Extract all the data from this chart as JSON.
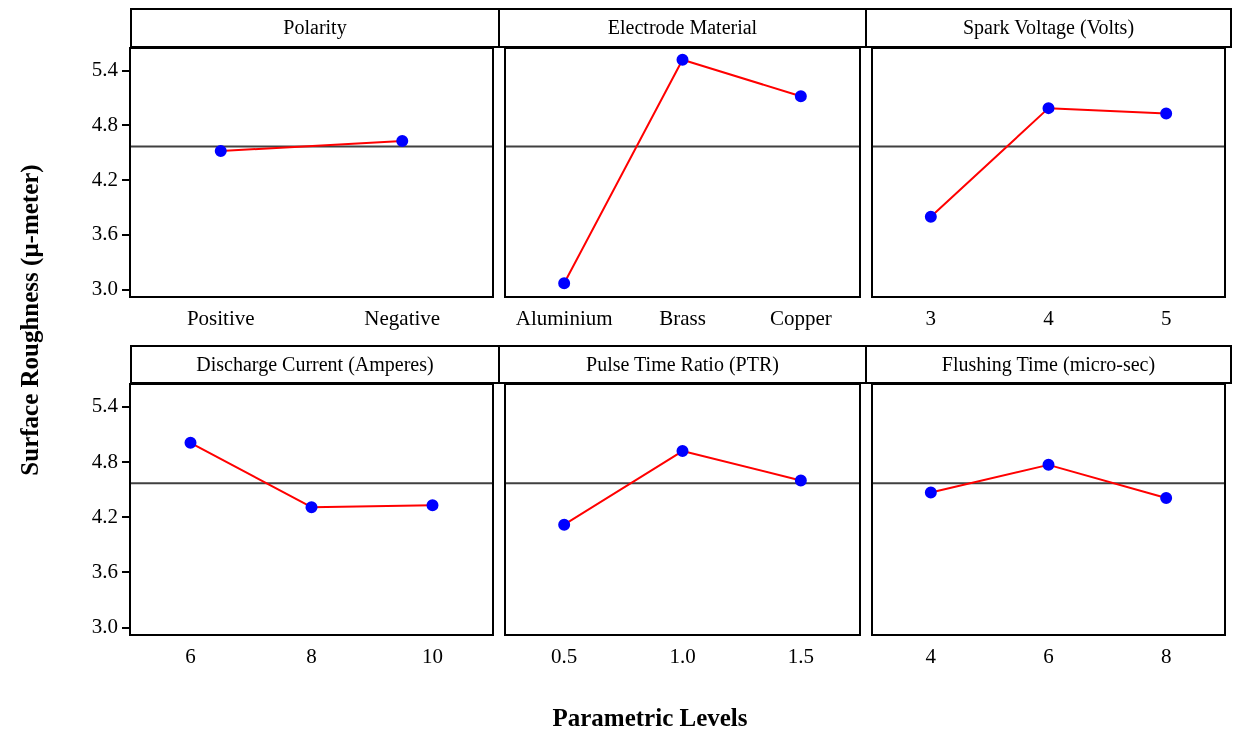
{
  "chart_data": [
    {
      "type": "line",
      "title": "Polarity",
      "ylabel": "Surface Roughness (μ-meter)",
      "categories": [
        "Positive",
        "Negative"
      ],
      "ylim": [
        2.92,
        5.66
      ],
      "yticks": [
        {
          "value": 3,
          "label": "3.0"
        },
        3.6,
        4.2,
        4.8,
        5.4
      ],
      "marker": "circle",
      "series": [
        {
          "color": "#ff0000",
          "colors": [
            "#0000ff",
            "#0000ff"
          ],
          "values": [
            4.52,
            4.63
          ]
        }
      ],
      "ref_lines": [
        {
          "axis": "y",
          "value": 4.57,
          "color": "#404040"
        }
      ]
    },
    {
      "type": "line",
      "title": "Electrode Material",
      "categories": [
        "Aluminium",
        "Brass",
        "Copper"
      ],
      "ylim": [
        2.92,
        5.66
      ],
      "yticks": [
        3.0,
        3.6,
        4.2,
        4.8,
        5.4
      ],
      "marker": "circle",
      "tick_labels": "x",
      "series": [
        {
          "color": "#ff0000",
          "colors": [
            "#0000ff",
            "#0000ff",
            "#0000ff"
          ],
          "values": [
            3.07,
            5.52,
            5.12
          ]
        }
      ],
      "ref_lines": [
        {
          "axis": "y",
          "value": 4.57,
          "color": "#404040"
        }
      ]
    },
    {
      "type": "line",
      "title": "Spark Voltage (Volts)",
      "categories": [
        "3",
        "4",
        "5"
      ],
      "ylim": [
        2.92,
        5.66
      ],
      "yticks": [
        3.0,
        3.6,
        4.2,
        4.8,
        5.4
      ],
      "marker": "circle",
      "tick_labels": "x",
      "series": [
        {
          "color": "#ff0000",
          "colors": [
            "#0000ff",
            "#0000ff",
            "#0000ff"
          ],
          "values": [
            3.8,
            4.99,
            4.93
          ]
        }
      ],
      "ref_lines": [
        {
          "axis": "y",
          "value": 4.57,
          "color": "#404040"
        }
      ]
    },
    {
      "type": "line",
      "title": "Discharge Current (Amperes)",
      "categories": [
        "6",
        "8",
        "10"
      ],
      "ylim": [
        2.92,
        5.66
      ],
      "yticks": [
        {
          "value": 3,
          "label": "3.0"
        },
        3.6,
        4.2,
        4.8,
        5.4
      ],
      "marker": "circle",
      "series": [
        {
          "color": "#ff0000",
          "colors": [
            "#0000ff",
            "#0000ff",
            "#0000ff"
          ],
          "values": [
            5.01,
            4.31,
            4.33
          ]
        }
      ],
      "ref_lines": [
        {
          "axis": "y",
          "value": 4.57,
          "color": "#404040"
        }
      ]
    },
    {
      "type": "line",
      "title": "Pulse Time Ratio (PTR)",
      "xlabel": "Parametric Levels",
      "categories": [
        "0.5",
        "1.0",
        "1.5"
      ],
      "ylim": [
        2.92,
        5.66
      ],
      "yticks": [
        3.0,
        3.6,
        4.2,
        4.8,
        5.4
      ],
      "marker": "circle",
      "tick_labels": "x",
      "series": [
        {
          "color": "#ff0000",
          "colors": [
            "#0000ff",
            "#0000ff",
            "#0000ff"
          ],
          "values": [
            4.12,
            4.92,
            4.6
          ]
        }
      ],
      "ref_lines": [
        {
          "axis": "y",
          "value": 4.57,
          "color": "#404040"
        }
      ]
    },
    {
      "type": "line",
      "title": "Flushing Time (micro-sec)",
      "categories": [
        "4",
        "6",
        "8"
      ],
      "ylim": [
        2.92,
        5.66
      ],
      "yticks": [
        3.0,
        3.6,
        4.2,
        4.8,
        5.4
      ],
      "marker": "circle",
      "tick_labels": "x",
      "series": [
        {
          "color": "#ff0000",
          "colors": [
            "#0000ff",
            "#0000ff",
            "#0000ff"
          ],
          "values": [
            4.47,
            4.77,
            4.41
          ]
        }
      ],
      "ref_lines": [
        {
          "axis": "y",
          "value": 4.57,
          "color": "#404040"
        }
      ]
    }
  ]
}
